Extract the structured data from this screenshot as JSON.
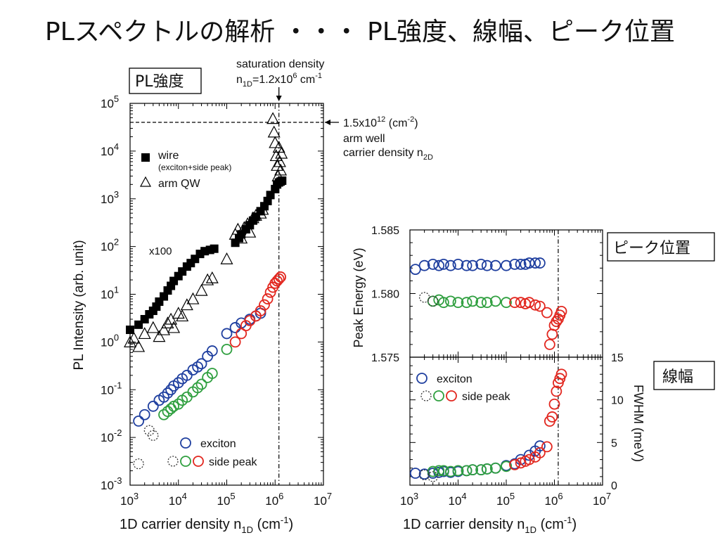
{
  "slide": {
    "title": "PLスペクトルの解析 ・・・ PL強度、線幅、ピーク位置"
  },
  "chart_data": [
    {
      "type": "scatter",
      "box_label": "PL強度",
      "ylabel": "PL Intensity (arb. unit)",
      "xlabel_main": "1D carrier density n",
      "xlabel_sub": "1D",
      "xlabel_unit": " (cm",
      "xlabel_sup": "-1",
      "xlabel_end": ")",
      "xscale": "log",
      "yscale": "log",
      "xlim": [
        1000,
        10000000
      ],
      "ylim": [
        0.001,
        100000
      ],
      "x_ticks": [
        1000,
        10000,
        100000,
        1000000,
        10000000
      ],
      "y_ticks": [
        0.001,
        0.01,
        0.1,
        1,
        10,
        100,
        1000,
        10000,
        100000
      ],
      "annotations": {
        "saturation_line1": "saturation density",
        "saturation_n": "n",
        "saturation_sub": "1D",
        "saturation_val": "=1.2x10",
        "saturation_exp": "6",
        "saturation_unit": " cm",
        "saturation_unit_exp": "-1",
        "arm_density_base": "1.5x10",
        "arm_density_exp": "12",
        "arm_density_unit": " (cm",
        "arm_density_unit_exp": "-2",
        "arm_density_close": ")",
        "arm_well": "arm well",
        "carrier_density": "carrier density n",
        "carrier_density_sub": "2D",
        "multiplier": "x100"
      },
      "saturation_x": 1200000,
      "arm_density_y": 40000,
      "legend_top": {
        "wire": "wire",
        "wire_note": "(exciton+side peak)",
        "arm": "arm QW"
      },
      "legend_bottom": {
        "exciton": "exciton",
        "side_peak": "side peak"
      },
      "series": [
        {
          "name": "wire",
          "marker": "filled-square",
          "color": "#000000",
          "x": [
            1000,
            1500,
            2000,
            2500,
            3000,
            3500,
            4000,
            5000,
            6000,
            7000,
            8000,
            10000,
            12000,
            15000,
            18000,
            22000,
            28000,
            35000,
            45000,
            55000,
            150000,
            180000,
            200000,
            250000,
            300000,
            350000,
            400000,
            500000,
            600000,
            700000,
            800000,
            1000000,
            1100000,
            1200000,
            1300000,
            1400000
          ],
          "y": [
            1.8,
            2.3,
            3.0,
            3.8,
            4.5,
            5.5,
            7,
            9,
            12,
            15,
            19,
            24,
            30,
            38,
            45,
            55,
            70,
            80,
            85,
            90,
            120,
            150,
            180,
            230,
            280,
            350,
            420,
            550,
            700,
            900,
            1200,
            1600,
            2000,
            2200,
            2300,
            2400
          ]
        },
        {
          "name": "arm QW",
          "marker": "open-triangle",
          "color": "#000000",
          "x": [
            1000,
            1200,
            1500,
            2000,
            3000,
            4000,
            5000,
            6000,
            7000,
            8000,
            10000,
            12000,
            15000,
            20000,
            30000,
            40000,
            50000,
            100000,
            150000,
            170000,
            200000,
            230000,
            270000,
            300000,
            350000,
            400000,
            500000,
            550000,
            900000,
            950000,
            1000000,
            1050000,
            1100000,
            1150000,
            1200000,
            1250000,
            1300000,
            1350000
          ],
          "y": [
            1.0,
            1.2,
            0.8,
            1.5,
            2.0,
            1.3,
            1.8,
            2.5,
            3.0,
            2.0,
            4.0,
            3.5,
            6.0,
            8.0,
            12,
            20,
            22,
            55,
            180,
            230,
            150,
            250,
            300,
            200,
            400,
            450,
            500,
            600,
            48000,
            25000,
            15000,
            8000,
            5000,
            3000,
            12000,
            6000,
            4000,
            9000
          ]
        },
        {
          "name": "exciton",
          "marker": "open-circle",
          "color": "#1f3f9f",
          "x": [
            1500,
            2000,
            3000,
            4000,
            5000,
            6000,
            7000,
            8000,
            10000,
            12000,
            15000,
            20000,
            25000,
            30000,
            40000,
            50000,
            100000,
            150000,
            200000,
            300000,
            400000,
            500000
          ],
          "y": [
            0.022,
            0.03,
            0.045,
            0.06,
            0.07,
            0.085,
            0.1,
            0.12,
            0.14,
            0.17,
            0.2,
            0.26,
            0.3,
            0.35,
            0.5,
            0.65,
            1.5,
            2.0,
            2.5,
            3.0,
            3.5,
            4.0
          ]
        },
        {
          "name": "side peak",
          "marker": "open-circle",
          "color": "#2f9f3f",
          "x": [
            5000,
            6000,
            7000,
            8000,
            10000,
            12000,
            15000,
            20000,
            25000,
            30000,
            40000,
            50000,
            100000
          ],
          "y": [
            0.03,
            0.035,
            0.04,
            0.045,
            0.05,
            0.06,
            0.07,
            0.09,
            0.11,
            0.13,
            0.18,
            0.22,
            0.7
          ]
        },
        {
          "name": "side peak",
          "marker": "open-circle",
          "color": "#e2271f",
          "x": [
            150000,
            200000,
            250000,
            300000,
            400000,
            500000,
            600000,
            700000,
            800000,
            900000,
            1000000,
            1100000,
            1200000,
            1300000
          ],
          "y": [
            1.0,
            1.5,
            2.2,
            2.8,
            3.5,
            4.5,
            6.0,
            8.0,
            11,
            14,
            17,
            19,
            21,
            23
          ]
        },
        {
          "name": "side peak",
          "marker": "open-circle-dashed",
          "color": "#333333",
          "x": [
            1500,
            2500,
            3000
          ],
          "y": [
            0.0028,
            0.014,
            0.011
          ]
        }
      ]
    },
    {
      "type": "scatter",
      "box_label": "ピーク位置",
      "ylabel": "Peak Energy (eV)",
      "xscale": "log",
      "xlim": [
        1000,
        10000000
      ],
      "ylim": [
        1.575,
        1.585
      ],
      "y_ticks": [
        1.575,
        1.58,
        1.585
      ],
      "saturation_x": 1200000,
      "series": [
        {
          "name": "exciton",
          "marker": "open-circle",
          "color": "#1f3f9f",
          "x": [
            1300,
            2000,
            3000,
            4000,
            5000,
            7000,
            10000,
            15000,
            20000,
            30000,
            40000,
            60000,
            100000,
            150000,
            200000,
            250000,
            300000,
            400000,
            500000
          ],
          "y": [
            1.5819,
            1.5822,
            1.5823,
            1.5822,
            1.5823,
            1.5822,
            1.5823,
            1.5822,
            1.5822,
            1.5823,
            1.5822,
            1.5822,
            1.5822,
            1.5823,
            1.5823,
            1.5823,
            1.5824,
            1.5824,
            1.5824
          ]
        },
        {
          "name": "side peak",
          "marker": "open-circle",
          "color": "#2f9f3f",
          "x": [
            3000,
            4000,
            5000,
            7000,
            10000,
            15000,
            20000,
            30000,
            40000,
            60000,
            100000
          ],
          "y": [
            1.5794,
            1.5795,
            1.5793,
            1.5794,
            1.5793,
            1.5793,
            1.5794,
            1.5793,
            1.5793,
            1.5794,
            1.5793
          ]
        },
        {
          "name": "side peak",
          "marker": "open-circle",
          "color": "#e2271f",
          "x": [
            150000,
            200000,
            250000,
            300000,
            400000,
            500000,
            700000,
            800000,
            900000,
            1000000,
            1100000,
            1200000,
            1300000,
            1400000
          ],
          "y": [
            1.5793,
            1.5793,
            1.5792,
            1.5793,
            1.5791,
            1.579,
            1.5785,
            1.576,
            1.5768,
            1.5775,
            1.5778,
            1.578,
            1.5783,
            1.5786
          ]
        },
        {
          "name": "side peak",
          "marker": "open-circle-dashed",
          "color": "#333333",
          "x": [
            2000,
            3000
          ],
          "y": [
            1.5797,
            1.5794
          ]
        }
      ]
    },
    {
      "type": "scatter",
      "box_label": "線幅",
      "ylabel": "FWHM (meV)",
      "xlabel_main": "1D carrier density n",
      "xlabel_sub": "1D",
      "xlabel_unit": " (cm",
      "xlabel_sup": "-1",
      "xlabel_end": ")",
      "xscale": "log",
      "xlim": [
        1000,
        10000000
      ],
      "ylim": [
        0,
        15
      ],
      "x_ticks": [
        1000,
        10000,
        100000,
        1000000,
        10000000
      ],
      "y_ticks": [
        0,
        5,
        10,
        15
      ],
      "saturation_x": 1200000,
      "legend": {
        "exciton": "exciton",
        "side_peak": "side peak"
      },
      "series": [
        {
          "name": "exciton",
          "marker": "open-circle",
          "color": "#1f3f9f",
          "x": [
            1300,
            2000,
            3000,
            4000,
            5000,
            7000,
            10000,
            15000,
            20000,
            30000,
            40000,
            60000,
            100000,
            150000,
            200000,
            300000,
            400000,
            500000
          ],
          "y": [
            1.4,
            1.3,
            1.4,
            1.5,
            1.6,
            1.5,
            1.6,
            1.7,
            1.8,
            1.8,
            1.9,
            2.0,
            2.3,
            2.5,
            3.0,
            3.5,
            4.0,
            4.6
          ]
        },
        {
          "name": "side peak",
          "marker": "open-circle",
          "color": "#2f9f3f",
          "x": [
            3000,
            4000,
            5000,
            7000,
            10000,
            15000,
            20000,
            30000,
            40000,
            60000,
            100000
          ],
          "y": [
            1.6,
            1.7,
            1.7,
            1.6,
            1.7,
            1.7,
            1.8,
            1.8,
            1.9,
            2.0,
            2.2
          ]
        },
        {
          "name": "side peak",
          "marker": "open-circle",
          "color": "#e2271f",
          "x": [
            150000,
            200000,
            250000,
            300000,
            400000,
            500000,
            700000,
            800000,
            900000,
            1000000,
            1100000,
            1200000,
            1300000,
            1400000
          ],
          "y": [
            2.4,
            2.6,
            2.8,
            3.0,
            3.3,
            3.8,
            4.5,
            7.5,
            8.0,
            9.5,
            11.0,
            12.0,
            12.5,
            13.0
          ]
        },
        {
          "name": "side peak",
          "marker": "open-circle-dashed",
          "color": "#333333",
          "x": [
            2000,
            3000
          ],
          "y": [
            1.2,
            1.0
          ]
        }
      ]
    }
  ]
}
